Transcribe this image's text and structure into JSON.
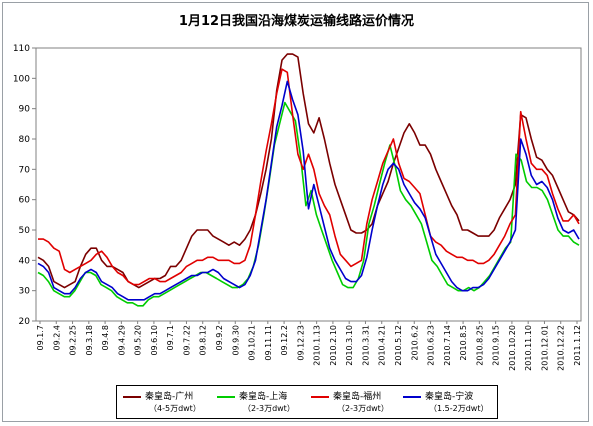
{
  "chart_data": {
    "type": "line",
    "title": "1月12日我国沿海煤炭运输线路运价情况",
    "xlabel": "",
    "ylabel": "",
    "ylim": [
      20,
      110
    ],
    "yticks": [
      20,
      30,
      40,
      50,
      60,
      70,
      80,
      90,
      100,
      110
    ],
    "xtick_labels": [
      "09.1.7",
      "09.2.4",
      "09.2.25",
      "09.3.18",
      "09.4.8",
      "09.4.29",
      "09.5.20",
      "09.6.10",
      "09.7.1",
      "09.7.22",
      "09.8.12",
      "09.9.2",
      "09.9.30",
      "09.10.21",
      "09.11.11",
      "09.12.2",
      "09.12.23",
      "2010.1.13",
      "2010.2.10",
      "2010.3.10",
      "2010.3.31",
      "2010.4.21",
      "2010.5.12",
      "2010.6.2",
      "2010.6.23",
      "2010.7.14",
      "2010.8.5",
      "2010.8.25",
      "2010.9.15",
      "2010.10.20",
      "2010.11.10",
      "2010.12.01",
      "2010.12.22",
      "2011.1.12"
    ],
    "grid": false,
    "legend_position": "bottom",
    "series": [
      {
        "name": "秦皇岛-广州",
        "subtitle": "（4-5万dwt）",
        "color": "#7b0000",
        "values": [
          41,
          40,
          38,
          33,
          32,
          31,
          32,
          33,
          38,
          42,
          44,
          44,
          40,
          38,
          38,
          37,
          36,
          33,
          32,
          31,
          32,
          33,
          34,
          34,
          35,
          38,
          38,
          40,
          44,
          48,
          50,
          50,
          50,
          48,
          47,
          46,
          45,
          46,
          45,
          47,
          50,
          55,
          62,
          70,
          80,
          96,
          106,
          108,
          108,
          107,
          95,
          85,
          82,
          87,
          80,
          72,
          65,
          60,
          55,
          50,
          49,
          49,
          50,
          52,
          58,
          62,
          66,
          72,
          77,
          82,
          85,
          82,
          78,
          78,
          75,
          70,
          66,
          62,
          58,
          55,
          50,
          50,
          49,
          48,
          48,
          48,
          50,
          54,
          57,
          60,
          65,
          88,
          87,
          80,
          74,
          73,
          70,
          68,
          64,
          60,
          56,
          55,
          53
        ]
      },
      {
        "name": "秦皇岛-上海",
        "subtitle": "（2-3万dwt）",
        "color": "#00cc00",
        "values": [
          36,
          35,
          33,
          30,
          29,
          28,
          28,
          30,
          33,
          36,
          36,
          35,
          32,
          31,
          30,
          28,
          27,
          26,
          26,
          25,
          25,
          27,
          28,
          28,
          29,
          30,
          31,
          32,
          33,
          34,
          35,
          36,
          36,
          35,
          34,
          33,
          32,
          31,
          31,
          32,
          34,
          38,
          45,
          55,
          66,
          78,
          85,
          92,
          89,
          86,
          74,
          58,
          63,
          55,
          50,
          45,
          40,
          36,
          32,
          31,
          31,
          34,
          40,
          52,
          58,
          65,
          72,
          78,
          71,
          63,
          60,
          58,
          55,
          52,
          46,
          40,
          38,
          35,
          32,
          31,
          30,
          30,
          31,
          30,
          31,
          33,
          35,
          38,
          41,
          44,
          46,
          75,
          73,
          66,
          64,
          64,
          63,
          60,
          55,
          50,
          48,
          48,
          46,
          45
        ]
      },
      {
        "name": "秦皇岛-福州",
        "subtitle": "（2-3万dwt）",
        "color": "#e00000",
        "values": [
          47,
          47,
          46,
          44,
          43,
          37,
          36,
          37,
          38,
          39,
          40,
          42,
          43,
          41,
          38,
          36,
          35,
          33,
          32,
          32,
          33,
          34,
          34,
          33,
          33,
          34,
          35,
          36,
          38,
          39,
          40,
          40,
          41,
          41,
          40,
          40,
          40,
          39,
          39,
          40,
          45,
          55,
          66,
          76,
          85,
          95,
          103,
          102,
          88,
          75,
          70,
          75,
          70,
          62,
          58,
          55,
          48,
          42,
          40,
          38,
          39,
          40,
          52,
          60,
          66,
          72,
          76,
          80,
          72,
          67,
          66,
          64,
          62,
          55,
          48,
          46,
          45,
          43,
          42,
          41,
          41,
          40,
          40,
          39,
          39,
          40,
          42,
          45,
          48,
          52,
          55,
          89,
          80,
          72,
          70,
          70,
          68,
          62,
          57,
          53,
          53,
          55,
          52
        ]
      },
      {
        "name": "秦皇岛-宁波",
        "subtitle": "（1.5-2万dwt）",
        "color": "#0000cc",
        "values": [
          39,
          38,
          36,
          31,
          30,
          29,
          29,
          31,
          34,
          36,
          37,
          36,
          33,
          32,
          31,
          29,
          28,
          27,
          27,
          27,
          27,
          28,
          29,
          29,
          30,
          31,
          32,
          33,
          34,
          35,
          35,
          36,
          36,
          37,
          36,
          34,
          33,
          32,
          31,
          32,
          35,
          40,
          50,
          60,
          72,
          84,
          91,
          99,
          93,
          88,
          76,
          57,
          65,
          58,
          51,
          44,
          40,
          37,
          34,
          33,
          33,
          35,
          41,
          50,
          58,
          65,
          70,
          72,
          70,
          65,
          62,
          59,
          57,
          54,
          48,
          42,
          39,
          36,
          33,
          31,
          30,
          30,
          31,
          31,
          32,
          34,
          37,
          40,
          43,
          46,
          50,
          80,
          75,
          68,
          65,
          66,
          64,
          60,
          54,
          50,
          49,
          50,
          47
        ]
      }
    ]
  }
}
